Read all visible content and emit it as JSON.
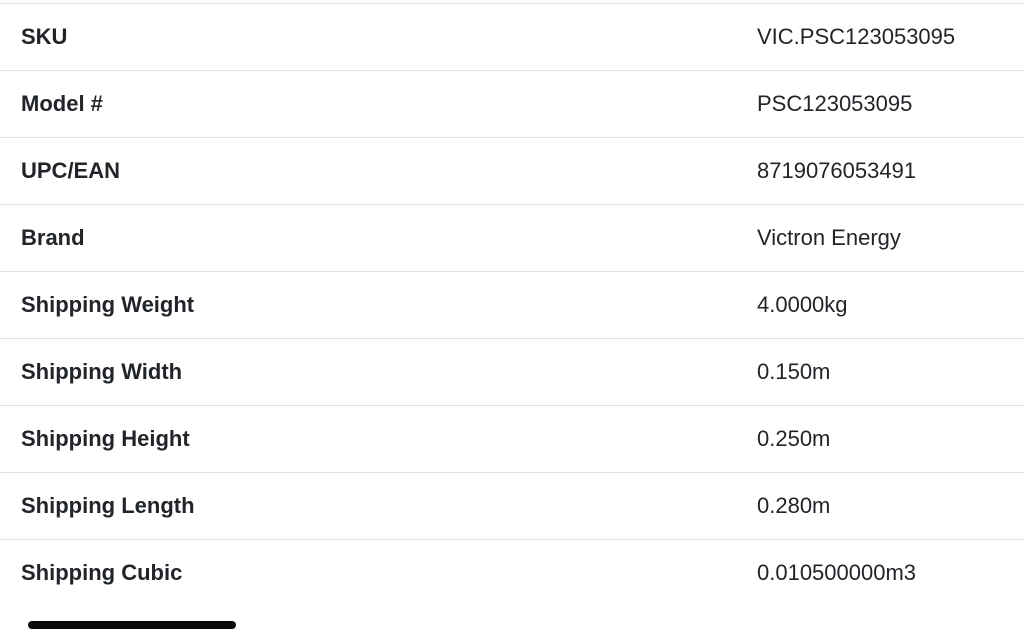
{
  "spec_table": {
    "rows": [
      {
        "label": "SKU",
        "value": "VIC.PSC123053095"
      },
      {
        "label": "Model #",
        "value": "PSC123053095"
      },
      {
        "label": "UPC/EAN",
        "value": "8719076053491"
      },
      {
        "label": "Brand",
        "value": "Victron Energy"
      },
      {
        "label": "Shipping Weight",
        "value": "4.0000kg"
      },
      {
        "label": "Shipping Width",
        "value": "0.150m"
      },
      {
        "label": "Shipping Height",
        "value": "0.250m"
      },
      {
        "label": "Shipping Length",
        "value": "0.280m"
      },
      {
        "label": "Shipping Cubic",
        "value": "0.010500000m3"
      }
    ],
    "colors": {
      "text": "#212529",
      "row_border": "#dee2e6",
      "background": "#ffffff",
      "scrollbar_thumb": "#0a0a0a"
    }
  }
}
